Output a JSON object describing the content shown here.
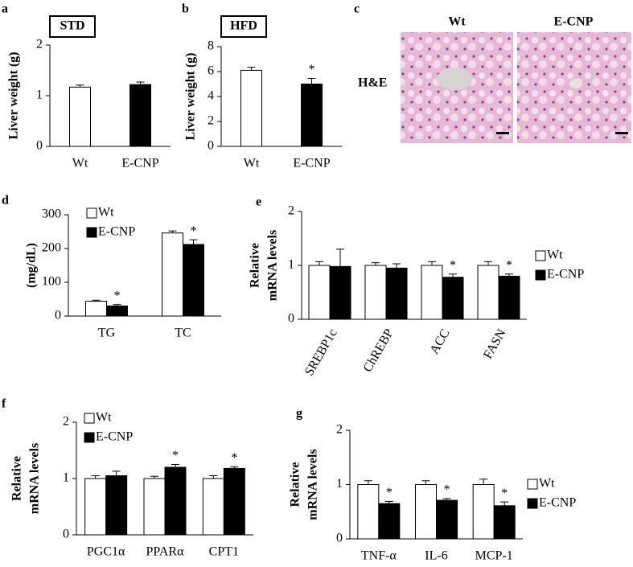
{
  "chart_data": [
    {
      "type": "bar",
      "panel": "a",
      "box_label": "STD",
      "y_label": [
        "Liver weight (g)"
      ],
      "categories": [
        "Wt",
        "E-CNP"
      ],
      "values": [
        1.17,
        1.22
      ],
      "errors": [
        0.04,
        0.05
      ],
      "colors": [
        "#ffffff",
        "#000000"
      ],
      "ylim": [
        0,
        2
      ],
      "yticks": [
        0,
        1,
        2
      ]
    },
    {
      "type": "bar",
      "panel": "b",
      "box_label": "HFD",
      "y_label": [
        "Liver weight (g)"
      ],
      "categories": [
        "Wt",
        "E-CNP"
      ],
      "values": [
        6.1,
        5.0
      ],
      "errors": [
        0.25,
        0.45
      ],
      "colors": [
        "#ffffff",
        "#000000"
      ],
      "ylim": [
        0,
        8
      ],
      "yticks": [
        0,
        2,
        4,
        6,
        8
      ],
      "annotations": [
        {
          "text": "*",
          "category": "E-CNP"
        }
      ]
    },
    {
      "type": "grouped_bar",
      "panel": "d",
      "y_label": [
        "(mg/dL)"
      ],
      "legend": "upper-left",
      "categories": [
        "TG",
        "TC"
      ],
      "series": [
        {
          "name": "Wt",
          "color": "#ffffff",
          "values": [
            44,
            246
          ],
          "errors": [
            3,
            6
          ]
        },
        {
          "name": "E-CNP",
          "color": "#000000",
          "values": [
            30,
            212
          ],
          "errors": [
            4,
            14
          ]
        }
      ],
      "ylim": [
        0,
        300
      ],
      "yticks": [
        0,
        100,
        200,
        300
      ],
      "annotations": [
        {
          "text": "*",
          "category": "TG"
        },
        {
          "text": "*",
          "category": "TC"
        }
      ]
    },
    {
      "type": "grouped_bar",
      "panel": "e",
      "y_label": [
        "Relative",
        "mRNA levels"
      ],
      "legend": "right",
      "rotate_labels": true,
      "categories": [
        "SREBP1c",
        "ChREBP",
        "ACC",
        "FASN"
      ],
      "series": [
        {
          "name": "Wt",
          "color": "#ffffff",
          "values": [
            1.0,
            1.0,
            1.0,
            1.0
          ],
          "errors": [
            0.07,
            0.05,
            0.07,
            0.07
          ]
        },
        {
          "name": "E-CNP",
          "color": "#000000",
          "values": [
            0.98,
            0.95,
            0.78,
            0.8
          ],
          "errors": [
            0.32,
            0.08,
            0.06,
            0.04
          ]
        }
      ],
      "ylim": [
        0,
        2
      ],
      "yticks": [
        0,
        1,
        2
      ],
      "annotations": [
        {
          "text": "*",
          "category": "ACC"
        },
        {
          "text": "*",
          "category": "FASN"
        }
      ]
    },
    {
      "type": "grouped_bar",
      "panel": "f",
      "y_label": [
        "Relative",
        "mRNA levels"
      ],
      "legend": "upper-left",
      "categories": [
        "PGC1α",
        "PPARα",
        "CPT1"
      ],
      "series": [
        {
          "name": "Wt",
          "color": "#ffffff",
          "values": [
            1.0,
            1.0,
            1.0
          ],
          "errors": [
            0.05,
            0.04,
            0.05
          ]
        },
        {
          "name": "E-CNP",
          "color": "#000000",
          "values": [
            1.05,
            1.2,
            1.18
          ],
          "errors": [
            0.08,
            0.05,
            0.03
          ]
        }
      ],
      "ylim": [
        0,
        2
      ],
      "yticks": [
        0,
        1,
        2
      ],
      "annotations": [
        {
          "text": "*",
          "category": "PPARα"
        },
        {
          "text": "*",
          "category": "CPT1"
        }
      ]
    },
    {
      "type": "grouped_bar",
      "panel": "g",
      "y_label": [
        "Relative",
        "mRNA levels"
      ],
      "legend": "right",
      "categories": [
        "TNF-α",
        "IL-6",
        "MCP-1"
      ],
      "series": [
        {
          "name": "Wt",
          "color": "#ffffff",
          "values": [
            1.0,
            1.0,
            1.0
          ],
          "errors": [
            0.07,
            0.07,
            0.1
          ]
        },
        {
          "name": "E-CNP",
          "color": "#000000",
          "values": [
            0.65,
            0.71,
            0.61
          ],
          "errors": [
            0.04,
            0.03,
            0.07
          ]
        }
      ],
      "ylim": [
        0,
        2
      ],
      "yticks": [
        0,
        1,
        2
      ],
      "annotations": [
        {
          "text": "*",
          "category": "TNF-α"
        },
        {
          "text": "*",
          "category": "IL-6"
        },
        {
          "text": "*",
          "category": "MCP-1"
        }
      ]
    }
  ],
  "panel_c": {
    "panel": "c",
    "stain": "H&E",
    "labels": [
      "Wt",
      "E-CNP"
    ]
  }
}
